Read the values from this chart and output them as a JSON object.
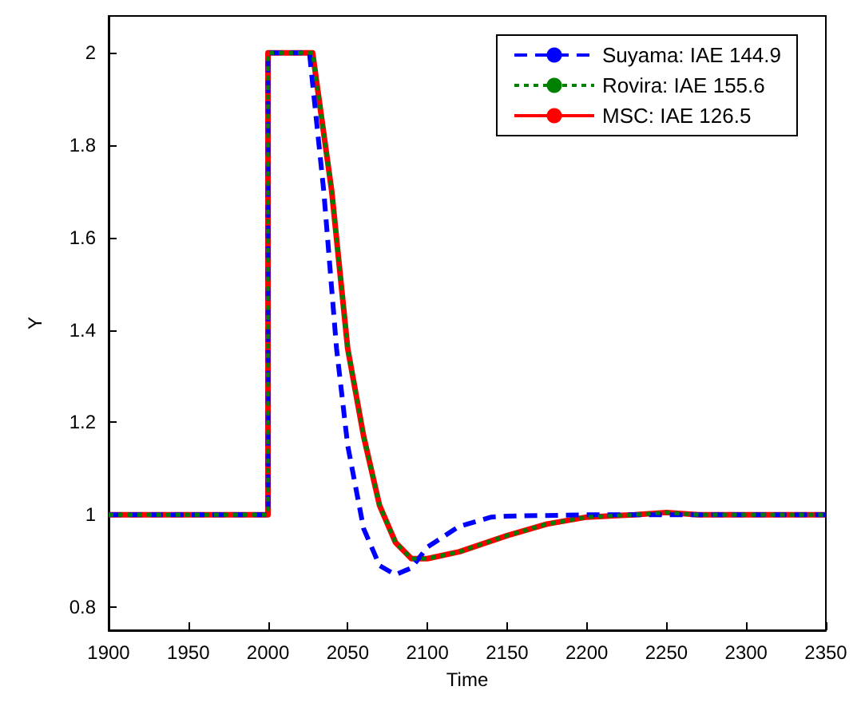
{
  "chart_data": {
    "type": "line",
    "xlabel": "Time",
    "ylabel": "Y",
    "xlim": [
      1900,
      2350
    ],
    "xticks": [
      1900,
      1950,
      2000,
      2050,
      2100,
      2150,
      2200,
      2250,
      2300,
      2350
    ],
    "ylim": [
      0.75,
      2.08
    ],
    "yticks": [
      0.8,
      1,
      1.2,
      1.4,
      1.6,
      1.8,
      2
    ],
    "grid": false,
    "legend": "top right",
    "marker": "none",
    "series": [
      {
        "name": "Suyama: IAE 144.9",
        "color": "#0000ff",
        "line_style": "dashed",
        "x": [
          1900,
          2000,
          2000,
          2026,
          2035,
          2043,
          2050,
          2060,
          2070,
          2080,
          2090,
          2100,
          2120,
          2140,
          2150,
          2200,
          2350
        ],
        "values": [
          1,
          1,
          2,
          2,
          1.7,
          1.36,
          1.15,
          0.97,
          0.89,
          0.87,
          0.885,
          0.93,
          0.975,
          0.995,
          0.997,
          1,
          1
        ]
      },
      {
        "name": "Rovira: IAE 155.6",
        "color": "#008000",
        "line_style": "dotted",
        "x": [
          1900,
          2000,
          2000,
          2028,
          2040,
          2050,
          2060,
          2070,
          2080,
          2090,
          2100,
          2120,
          2150,
          2175,
          2200,
          2230,
          2250,
          2270,
          2350
        ],
        "values": [
          1,
          1,
          2,
          2,
          1.7,
          1.36,
          1.17,
          1.02,
          0.94,
          0.905,
          0.905,
          0.92,
          0.955,
          0.98,
          0.995,
          1,
          1.005,
          1,
          1
        ]
      },
      {
        "name": "MSC: IAE 126.5",
        "color": "#ff0000",
        "line_style": "solid",
        "x": [
          1900,
          2000,
          2000,
          2028,
          2040,
          2050,
          2060,
          2070,
          2080,
          2090,
          2100,
          2120,
          2150,
          2175,
          2200,
          2230,
          2250,
          2270,
          2350
        ],
        "values": [
          1,
          1,
          2,
          2,
          1.7,
          1.36,
          1.17,
          1.02,
          0.94,
          0.905,
          0.905,
          0.92,
          0.955,
          0.98,
          0.995,
          1,
          1.005,
          1,
          1
        ]
      }
    ]
  }
}
